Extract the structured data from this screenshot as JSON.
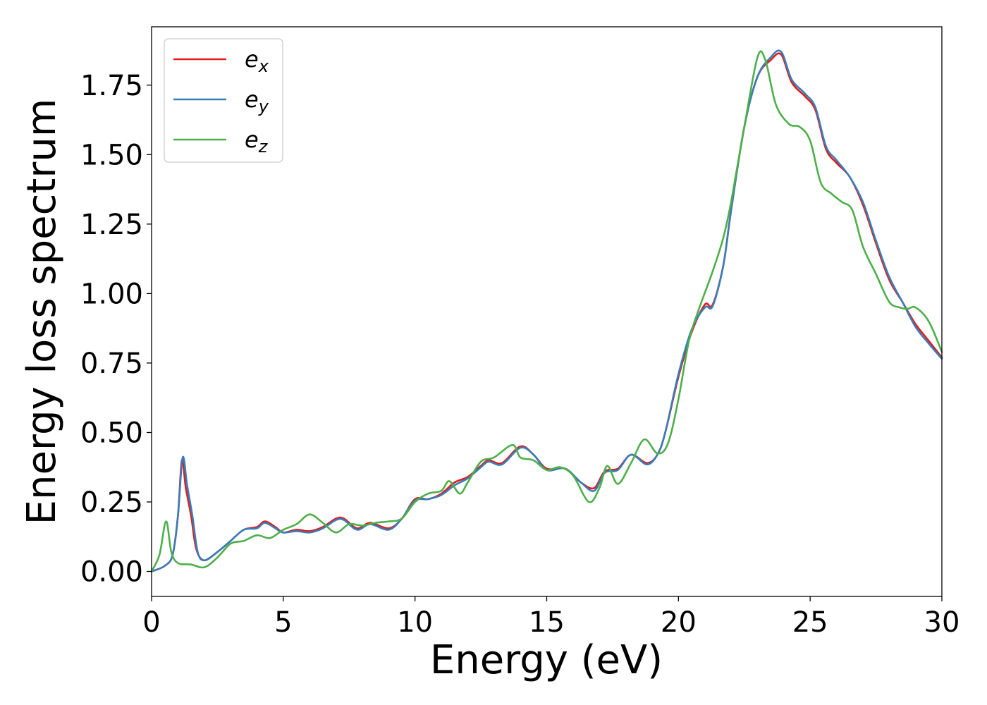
{
  "chart_data": {
    "type": "line",
    "xlabel": "Energy (eV)",
    "ylabel": "Energy loss spectrum",
    "xlim": [
      0,
      30
    ],
    "ylim": [
      -0.09,
      1.96
    ],
    "xticks": [
      0,
      5,
      10,
      15,
      20,
      25,
      30
    ],
    "xtick_labels": [
      "0",
      "5",
      "10",
      "15",
      "20",
      "25",
      "30"
    ],
    "yticks": [
      0,
      0.25,
      0.5,
      0.75,
      1.0,
      1.25,
      1.5,
      1.75
    ],
    "ytick_labels": [
      "0.00",
      "0.25",
      "0.50",
      "0.75",
      "1.00",
      "1.25",
      "1.50",
      "1.75"
    ],
    "grid": false,
    "legend_position": "top-left",
    "series": [
      {
        "name": "e",
        "subscript": "x",
        "color": "#e41a1c",
        "points": [
          [
            0,
            0.0
          ],
          [
            0.5,
            0.02
          ],
          [
            0.8,
            0.06
          ],
          [
            1.0,
            0.2
          ],
          [
            1.15,
            0.4
          ],
          [
            1.3,
            0.3
          ],
          [
            1.5,
            0.2
          ],
          [
            1.7,
            0.08
          ],
          [
            2.0,
            0.04
          ],
          [
            2.5,
            0.07
          ],
          [
            3.0,
            0.11
          ],
          [
            3.5,
            0.15
          ],
          [
            4.0,
            0.16
          ],
          [
            4.3,
            0.18
          ],
          [
            4.7,
            0.16
          ],
          [
            5.0,
            0.14
          ],
          [
            5.5,
            0.15
          ],
          [
            6.0,
            0.145
          ],
          [
            6.5,
            0.16
          ],
          [
            7.0,
            0.19
          ],
          [
            7.3,
            0.19
          ],
          [
            7.8,
            0.155
          ],
          [
            8.3,
            0.175
          ],
          [
            9.0,
            0.155
          ],
          [
            9.5,
            0.19
          ],
          [
            10.0,
            0.26
          ],
          [
            10.5,
            0.26
          ],
          [
            11.0,
            0.28
          ],
          [
            11.5,
            0.32
          ],
          [
            12.0,
            0.34
          ],
          [
            12.5,
            0.38
          ],
          [
            12.8,
            0.4
          ],
          [
            13.3,
            0.39
          ],
          [
            14.0,
            0.45
          ],
          [
            14.5,
            0.42
          ],
          [
            15.0,
            0.37
          ],
          [
            15.7,
            0.37
          ],
          [
            16.3,
            0.32
          ],
          [
            16.8,
            0.3
          ],
          [
            17.2,
            0.36
          ],
          [
            17.7,
            0.37
          ],
          [
            18.2,
            0.42
          ],
          [
            18.8,
            0.39
          ],
          [
            19.2,
            0.42
          ],
          [
            19.5,
            0.5
          ],
          [
            20.0,
            0.7
          ],
          [
            20.5,
            0.86
          ],
          [
            21.0,
            0.96
          ],
          [
            21.3,
            0.96
          ],
          [
            21.7,
            1.1
          ],
          [
            22.0,
            1.3
          ],
          [
            22.5,
            1.6
          ],
          [
            23.0,
            1.78
          ],
          [
            23.5,
            1.84
          ],
          [
            23.9,
            1.86
          ],
          [
            24.3,
            1.76
          ],
          [
            24.8,
            1.71
          ],
          [
            25.2,
            1.66
          ],
          [
            25.6,
            1.52
          ],
          [
            26.0,
            1.47
          ],
          [
            26.5,
            1.42
          ],
          [
            27.0,
            1.32
          ],
          [
            27.5,
            1.18
          ],
          [
            28.0,
            1.05
          ],
          [
            28.5,
            0.97
          ],
          [
            29.0,
            0.89
          ],
          [
            29.5,
            0.83
          ],
          [
            30.0,
            0.77
          ]
        ]
      },
      {
        "name": "e",
        "subscript": "y",
        "color": "#377eb8",
        "points": [
          [
            0,
            0.0
          ],
          [
            0.5,
            0.02
          ],
          [
            0.8,
            0.06
          ],
          [
            1.0,
            0.2
          ],
          [
            1.18,
            0.41
          ],
          [
            1.35,
            0.31
          ],
          [
            1.55,
            0.2
          ],
          [
            1.75,
            0.07
          ],
          [
            2.0,
            0.04
          ],
          [
            2.5,
            0.07
          ],
          [
            3.0,
            0.11
          ],
          [
            3.5,
            0.15
          ],
          [
            4.0,
            0.155
          ],
          [
            4.3,
            0.175
          ],
          [
            4.7,
            0.155
          ],
          [
            5.0,
            0.14
          ],
          [
            5.5,
            0.145
          ],
          [
            6.0,
            0.14
          ],
          [
            6.5,
            0.155
          ],
          [
            7.0,
            0.185
          ],
          [
            7.3,
            0.185
          ],
          [
            7.8,
            0.15
          ],
          [
            8.3,
            0.17
          ],
          [
            9.0,
            0.15
          ],
          [
            9.5,
            0.19
          ],
          [
            10.0,
            0.255
          ],
          [
            10.5,
            0.26
          ],
          [
            11.0,
            0.275
          ],
          [
            11.5,
            0.31
          ],
          [
            12.0,
            0.335
          ],
          [
            12.5,
            0.375
          ],
          [
            12.8,
            0.395
          ],
          [
            13.3,
            0.385
          ],
          [
            14.0,
            0.445
          ],
          [
            14.5,
            0.42
          ],
          [
            15.0,
            0.365
          ],
          [
            15.7,
            0.37
          ],
          [
            16.3,
            0.32
          ],
          [
            16.8,
            0.29
          ],
          [
            17.2,
            0.355
          ],
          [
            17.7,
            0.365
          ],
          [
            18.2,
            0.42
          ],
          [
            18.8,
            0.385
          ],
          [
            19.2,
            0.42
          ],
          [
            19.5,
            0.5
          ],
          [
            20.0,
            0.71
          ],
          [
            20.5,
            0.87
          ],
          [
            21.0,
            0.95
          ],
          [
            21.3,
            0.955
          ],
          [
            21.7,
            1.1
          ],
          [
            22.0,
            1.3
          ],
          [
            22.5,
            1.6
          ],
          [
            23.0,
            1.78
          ],
          [
            23.5,
            1.85
          ],
          [
            23.9,
            1.87
          ],
          [
            24.3,
            1.77
          ],
          [
            24.8,
            1.72
          ],
          [
            25.2,
            1.67
          ],
          [
            25.6,
            1.53
          ],
          [
            26.0,
            1.48
          ],
          [
            26.5,
            1.42
          ],
          [
            27.0,
            1.33
          ],
          [
            27.5,
            1.19
          ],
          [
            28.0,
            1.06
          ],
          [
            28.5,
            0.97
          ],
          [
            29.0,
            0.88
          ],
          [
            29.5,
            0.82
          ],
          [
            30.0,
            0.765
          ]
        ]
      },
      {
        "name": "e",
        "subscript": "z",
        "color": "#4daf4a",
        "points": [
          [
            0,
            0.0
          ],
          [
            0.3,
            0.06
          ],
          [
            0.55,
            0.18
          ],
          [
            0.75,
            0.07
          ],
          [
            1.0,
            0.03
          ],
          [
            1.5,
            0.025
          ],
          [
            2.0,
            0.015
          ],
          [
            2.5,
            0.05
          ],
          [
            3.0,
            0.1
          ],
          [
            3.5,
            0.11
          ],
          [
            4.0,
            0.13
          ],
          [
            4.5,
            0.12
          ],
          [
            5.0,
            0.15
          ],
          [
            5.5,
            0.17
          ],
          [
            6.0,
            0.205
          ],
          [
            6.5,
            0.175
          ],
          [
            7.0,
            0.14
          ],
          [
            7.5,
            0.17
          ],
          [
            8.0,
            0.165
          ],
          [
            8.5,
            0.175
          ],
          [
            9.0,
            0.18
          ],
          [
            9.5,
            0.19
          ],
          [
            10.0,
            0.25
          ],
          [
            10.5,
            0.28
          ],
          [
            11.0,
            0.29
          ],
          [
            11.3,
            0.325
          ],
          [
            11.7,
            0.28
          ],
          [
            12.0,
            0.32
          ],
          [
            12.5,
            0.395
          ],
          [
            13.0,
            0.41
          ],
          [
            13.7,
            0.455
          ],
          [
            14.0,
            0.41
          ],
          [
            14.5,
            0.4
          ],
          [
            15.0,
            0.365
          ],
          [
            15.5,
            0.375
          ],
          [
            16.0,
            0.345
          ],
          [
            16.6,
            0.25
          ],
          [
            17.0,
            0.3
          ],
          [
            17.3,
            0.38
          ],
          [
            17.7,
            0.315
          ],
          [
            18.2,
            0.39
          ],
          [
            18.7,
            0.475
          ],
          [
            19.2,
            0.425
          ],
          [
            19.6,
            0.46
          ],
          [
            20.0,
            0.62
          ],
          [
            20.4,
            0.83
          ],
          [
            20.8,
            0.95
          ],
          [
            21.3,
            1.08
          ],
          [
            21.7,
            1.2
          ],
          [
            22.0,
            1.33
          ],
          [
            22.5,
            1.6
          ],
          [
            23.0,
            1.85
          ],
          [
            23.3,
            1.84
          ],
          [
            23.7,
            1.68
          ],
          [
            24.2,
            1.61
          ],
          [
            24.6,
            1.6
          ],
          [
            25.0,
            1.55
          ],
          [
            25.4,
            1.4
          ],
          [
            25.8,
            1.36
          ],
          [
            26.2,
            1.33
          ],
          [
            26.6,
            1.3
          ],
          [
            27.0,
            1.17
          ],
          [
            27.5,
            1.07
          ],
          [
            28.0,
            0.97
          ],
          [
            28.4,
            0.95
          ],
          [
            28.7,
            0.945
          ],
          [
            29.0,
            0.95
          ],
          [
            29.5,
            0.9
          ],
          [
            30.0,
            0.79
          ]
        ]
      }
    ]
  }
}
